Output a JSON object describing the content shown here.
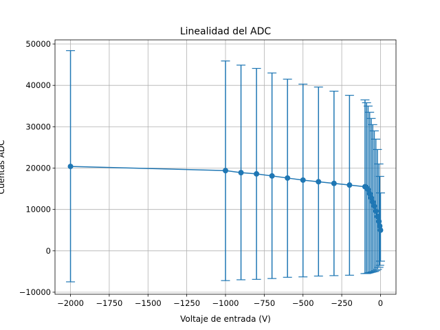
{
  "chart_data": {
    "type": "line",
    "title": "Linealidad del ADC",
    "xlabel": "Voltaje de entrada (V)",
    "ylabel": "Cuentas ADC",
    "xlim": [
      -2100,
      100
    ],
    "ylim": [
      -10500,
      51000
    ],
    "xticks": [
      -2000,
      -1750,
      -1500,
      -1250,
      -1000,
      -750,
      -500,
      -250,
      0
    ],
    "xtick_labels": [
      "−2000",
      "−1750",
      "−1500",
      "−1250",
      "−1000",
      "−750",
      "−500",
      "−250",
      "0"
    ],
    "yticks": [
      -10000,
      0,
      10000,
      20000,
      30000,
      40000,
      50000
    ],
    "ytick_labels": [
      "−10000",
      "0",
      "10000",
      "20000",
      "30000",
      "40000",
      "50000"
    ],
    "grid": true,
    "color": "#1f77b4",
    "series": [
      {
        "x": [
          -2000,
          -1000,
          -900,
          -800,
          -700,
          -600,
          -500,
          -400,
          -300,
          -200,
          -100,
          -90,
          -80,
          -70,
          -60,
          -50,
          -40,
          -30,
          -20,
          -10,
          -5,
          0
        ],
        "y": [
          20400,
          19400,
          18900,
          18600,
          18100,
          17600,
          17100,
          16700,
          16300,
          15900,
          15500,
          15300,
          14800,
          13800,
          12800,
          11800,
          10800,
          9600,
          8300,
          7100,
          6000,
          5000
        ],
        "err_low": [
          -7500,
          -7200,
          -7000,
          -6900,
          -6700,
          -6400,
          -6300,
          -6100,
          -6000,
          -5900,
          -5500,
          -5500,
          -5400,
          -5300,
          -5200,
          -5100,
          -5000,
          -4800,
          -4500,
          -4000,
          -3500,
          -2500
        ],
        "err_high": [
          48400,
          45900,
          44900,
          44100,
          43000,
          41500,
          40300,
          39600,
          38600,
          37600,
          36500,
          35800,
          35000,
          33500,
          32000,
          30500,
          29000,
          27000,
          24500,
          21000,
          18000,
          14000
        ]
      }
    ]
  }
}
